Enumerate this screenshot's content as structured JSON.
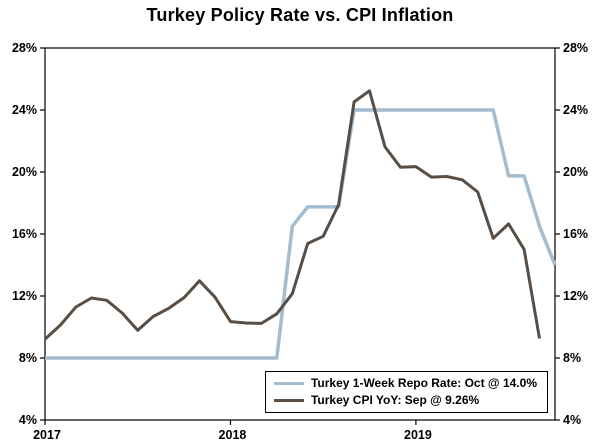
{
  "chart_data": {
    "type": "line",
    "title": "Turkey Policy Rate vs. CPI Inflation",
    "xlabel": "",
    "ylabel": "",
    "ylim": [
      4,
      28
    ],
    "yticks": [
      4,
      8,
      12,
      16,
      20,
      24,
      28
    ],
    "ytick_suffix": "%",
    "y_axis_sides": [
      "left",
      "right"
    ],
    "grid": false,
    "legend_position": "bottom-right-inside",
    "x_start_month": "2017-01",
    "x_end_month": "2019-10",
    "total_months": 34,
    "xticks": [
      {
        "label": "2017",
        "month_index": 0
      },
      {
        "label": "2018",
        "month_index": 12
      },
      {
        "label": "2019",
        "month_index": 24
      }
    ],
    "series": [
      {
        "name": "Turkey 1-Week Repo Rate",
        "label": "Turkey 1-Week Repo Rate: Oct @ 14.0%",
        "color": "#a3bcd0",
        "latest": "Oct @ 14.0%",
        "values": [
          8,
          8,
          8,
          8,
          8,
          8,
          8,
          8,
          8,
          8,
          8,
          8,
          8,
          8,
          8,
          8,
          16.5,
          17.75,
          17.75,
          17.75,
          24,
          24,
          24,
          24,
          24,
          24,
          24,
          24,
          24,
          24,
          19.75,
          19.75,
          16.5,
          14
        ]
      },
      {
        "name": "Turkey CPI YoY",
        "label": "Turkey CPI YoY: Sep @ 9.26%",
        "color": "#584e45",
        "latest": "Sep @ 9.26%",
        "values": [
          9.22,
          10.13,
          11.29,
          11.87,
          11.72,
          10.9,
          9.79,
          10.68,
          11.2,
          11.9,
          12.98,
          11.92,
          10.35,
          10.26,
          10.23,
          10.85,
          12.15,
          15.39,
          15.85,
          17.9,
          24.52,
          25.24,
          21.62,
          20.3,
          20.35,
          19.67,
          19.71,
          19.5,
          18.71,
          15.72,
          16.65,
          15.01,
          9.26
        ]
      }
    ]
  }
}
